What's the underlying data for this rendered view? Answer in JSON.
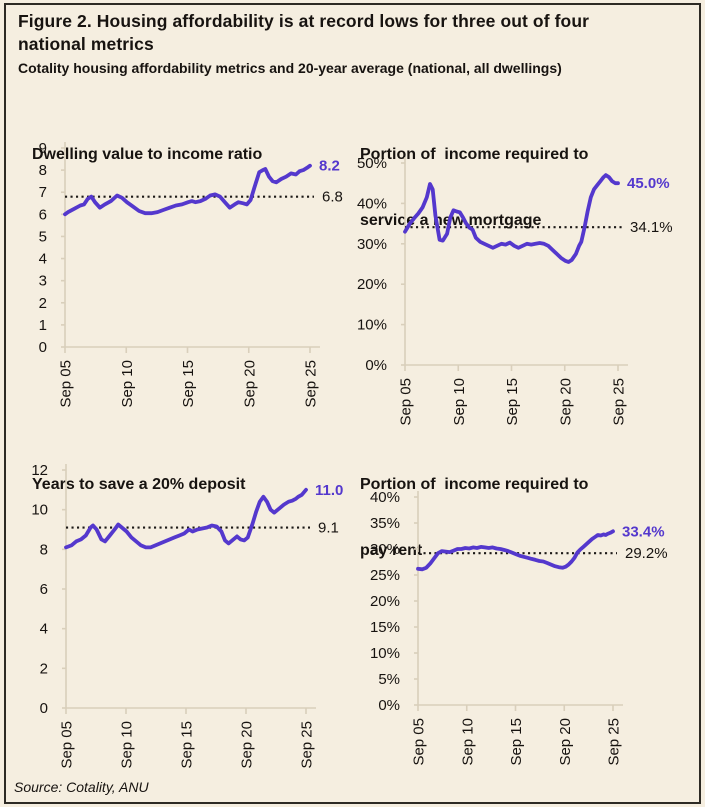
{
  "header": {
    "title": "Figure 2. Housing affordability is at record lows for three out of four national metrics",
    "subtitle": "Cotality housing affordability metrics and 20-year average (national, all dwellings)"
  },
  "footer": {
    "source": "Source: Cotality, ANU"
  },
  "colors": {
    "background": "#f5eee0",
    "border": "#2d2a24",
    "text": "#171310",
    "series_line": "#5438cd",
    "axis": "#d9cfbb",
    "average_dotted": "#1c1917"
  },
  "chart_data": [
    {
      "type": "line",
      "title_lines": [
        "Dwelling value to income ratio"
      ],
      "ylim": [
        0,
        9
      ],
      "y_tick_values": [
        9,
        8,
        7,
        6,
        5,
        4,
        3,
        2,
        1,
        0
      ],
      "y_tick_labels": [
        "9",
        "8",
        "7",
        "6",
        "5",
        "4",
        "3",
        "2",
        "1",
        "0"
      ],
      "x_range": [
        2005.75,
        2025.75
      ],
      "x_tick_values": [
        2005.75,
        2010.75,
        2015.75,
        2020.75,
        2025.75
      ],
      "x_tick_labels": [
        "Sep 05",
        "Sep 10",
        "Sep 15",
        "Sep 20",
        "Sep 25"
      ],
      "average": 6.8,
      "average_label": "6.8",
      "latest": 8.2,
      "latest_label": "8.2",
      "series": {
        "x": [
          2005.75,
          2006.0,
          2006.5,
          2007.0,
          2007.3,
          2007.6,
          2007.9,
          2008.2,
          2008.6,
          2009.0,
          2009.5,
          2010.0,
          2010.4,
          2010.8,
          2011.3,
          2011.8,
          2012.3,
          2012.8,
          2013.3,
          2013.8,
          2014.3,
          2014.8,
          2015.3,
          2015.8,
          2016.1,
          2016.4,
          2016.8,
          2017.2,
          2017.6,
          2018.0,
          2018.4,
          2018.8,
          2019.2,
          2019.6,
          2019.9,
          2020.3,
          2020.6,
          2020.9,
          2021.2,
          2021.6,
          2021.9,
          2022.1,
          2022.4,
          2022.7,
          2023.0,
          2023.4,
          2023.8,
          2024.2,
          2024.6,
          2024.9,
          2025.2,
          2025.5,
          2025.75
        ],
        "y": [
          6.0,
          6.1,
          6.25,
          6.4,
          6.45,
          6.7,
          6.8,
          6.55,
          6.3,
          6.45,
          6.6,
          6.85,
          6.75,
          6.55,
          6.35,
          6.15,
          6.05,
          6.05,
          6.1,
          6.2,
          6.3,
          6.4,
          6.45,
          6.55,
          6.6,
          6.55,
          6.6,
          6.7,
          6.85,
          6.9,
          6.8,
          6.55,
          6.3,
          6.45,
          6.55,
          6.5,
          6.45,
          6.65,
          7.2,
          7.9,
          8.0,
          8.05,
          7.7,
          7.5,
          7.45,
          7.6,
          7.7,
          7.85,
          7.8,
          7.95,
          8.0,
          8.1,
          8.2
        ]
      }
    },
    {
      "type": "line",
      "title_lines": [
        "Portion of  income required to",
        "service a new mortgage"
      ],
      "ylim": [
        0,
        50
      ],
      "y_tick_values": [
        50,
        40,
        30,
        20,
        10,
        0
      ],
      "y_tick_labels": [
        "50%",
        "40%",
        "30%",
        "20%",
        "10%",
        "0%"
      ],
      "x_range": [
        2005.75,
        2025.75
      ],
      "x_tick_values": [
        2005.75,
        2010.75,
        2015.75,
        2020.75,
        2025.75
      ],
      "x_tick_labels": [
        "Sep 05",
        "Sep 10",
        "Sep 15",
        "Sep 20",
        "Sep 25"
      ],
      "average": 34.1,
      "average_label": "34.1%",
      "latest": 45.0,
      "latest_label": "45.0%",
      "series": {
        "x": [
          2005.75,
          2006.2,
          2006.6,
          2007.0,
          2007.4,
          2007.8,
          2008.1,
          2008.35,
          2008.6,
          2009.0,
          2009.3,
          2009.7,
          2010.0,
          2010.3,
          2010.6,
          2010.9,
          2011.2,
          2011.5,
          2011.8,
          2012.1,
          2012.4,
          2012.8,
          2013.2,
          2013.6,
          2014.0,
          2014.4,
          2014.8,
          2015.2,
          2015.6,
          2016.0,
          2016.4,
          2016.8,
          2017.2,
          2017.6,
          2018.0,
          2018.4,
          2018.8,
          2019.2,
          2019.6,
          2020.0,
          2020.4,
          2020.8,
          2021.1,
          2021.4,
          2021.8,
          2022.1,
          2022.3,
          2022.6,
          2022.9,
          2023.2,
          2023.5,
          2023.8,
          2024.1,
          2024.4,
          2024.6,
          2024.9,
          2025.2,
          2025.5,
          2025.75
        ],
        "y": [
          33,
          35,
          36.3,
          37.5,
          39,
          41.5,
          44.8,
          43.5,
          37,
          31,
          30.8,
          32.5,
          36.5,
          38.3,
          38,
          37.8,
          36.5,
          35,
          34,
          33.5,
          31.5,
          30.5,
          30,
          29.5,
          29,
          29.5,
          30,
          29.8,
          30.3,
          29.5,
          29,
          29.5,
          30,
          29.8,
          30,
          30.2,
          30,
          29.5,
          28.5,
          27.5,
          26.5,
          25.8,
          25.5,
          26,
          27.5,
          29.5,
          30.5,
          34,
          38,
          41.5,
          43.5,
          44.5,
          45.5,
          46.5,
          47,
          46.5,
          45.5,
          45,
          45
        ]
      }
    },
    {
      "type": "line",
      "title_lines": [
        "Years to save a 20% deposit"
      ],
      "ylim": [
        0,
        12
      ],
      "y_tick_values": [
        12,
        10,
        8,
        6,
        4,
        2,
        0
      ],
      "y_tick_labels": [
        "12",
        "10",
        "8",
        "6",
        "4",
        "2",
        "0"
      ],
      "x_range": [
        2005.75,
        2025.75
      ],
      "x_tick_values": [
        2005.75,
        2010.75,
        2015.75,
        2020.75,
        2025.75
      ],
      "x_tick_labels": [
        "Sep 05",
        "Sep 10",
        "Sep 15",
        "Sep 20",
        "Sep 25"
      ],
      "average": 9.1,
      "average_label": "9.1",
      "latest": 11.0,
      "latest_label": "11.0",
      "series": {
        "x": [
          2005.75,
          2006.2,
          2006.6,
          2007.0,
          2007.4,
          2007.8,
          2008.0,
          2008.3,
          2008.7,
          2009.0,
          2009.4,
          2009.8,
          2010.1,
          2010.4,
          2010.8,
          2011.2,
          2011.6,
          2012.0,
          2012.4,
          2012.8,
          2013.2,
          2013.6,
          2014.0,
          2014.4,
          2014.8,
          2015.2,
          2015.6,
          2016.0,
          2016.3,
          2016.7,
          2017.1,
          2017.5,
          2017.9,
          2018.3,
          2018.7,
          2019.0,
          2019.3,
          2019.7,
          2020.0,
          2020.3,
          2020.6,
          2020.9,
          2021.3,
          2021.6,
          2021.9,
          2022.2,
          2022.5,
          2022.8,
          2023.1,
          2023.5,
          2023.9,
          2024.3,
          2024.6,
          2024.9,
          2025.1,
          2025.4,
          2025.75
        ],
        "y": [
          8.1,
          8.2,
          8.4,
          8.5,
          8.7,
          9.1,
          9.2,
          9.0,
          8.5,
          8.4,
          8.7,
          9.0,
          9.25,
          9.1,
          8.9,
          8.6,
          8.4,
          8.2,
          8.1,
          8.1,
          8.2,
          8.3,
          8.4,
          8.5,
          8.6,
          8.7,
          8.8,
          9.0,
          8.9,
          9.0,
          9.05,
          9.1,
          9.2,
          9.15,
          8.9,
          8.45,
          8.3,
          8.5,
          8.65,
          8.5,
          8.45,
          8.6,
          9.3,
          9.9,
          10.4,
          10.65,
          10.4,
          10.0,
          9.85,
          10.05,
          10.25,
          10.4,
          10.45,
          10.55,
          10.65,
          10.75,
          11.0
        ]
      }
    },
    {
      "type": "line",
      "title_lines": [
        "Portion of  income required to",
        "pay rent"
      ],
      "ylim": [
        0,
        40
      ],
      "y_tick_values": [
        40,
        35,
        30,
        25,
        20,
        15,
        10,
        5,
        0
      ],
      "y_tick_labels": [
        "40%",
        "35%",
        "30%",
        "25%",
        "20%",
        "15%",
        "10%",
        "5%",
        "0%"
      ],
      "x_range": [
        2005.75,
        2025.75
      ],
      "x_tick_values": [
        2005.75,
        2010.75,
        2015.75,
        2020.75,
        2025.75
      ],
      "x_tick_labels": [
        "Sep 05",
        "Sep 10",
        "Sep 15",
        "Sep 20",
        "Sep 25"
      ],
      "average": 29.2,
      "average_label": "29.2%",
      "latest": 33.4,
      "latest_label": "33.4%",
      "series": {
        "x": [
          2005.75,
          2006.2,
          2006.6,
          2007.0,
          2007.4,
          2007.8,
          2008.2,
          2008.6,
          2009.0,
          2009.4,
          2009.8,
          2010.2,
          2010.6,
          2011.0,
          2011.4,
          2011.8,
          2012.2,
          2012.6,
          2013.0,
          2013.4,
          2013.8,
          2014.2,
          2014.6,
          2015.0,
          2015.4,
          2015.8,
          2016.2,
          2016.6,
          2017.0,
          2017.4,
          2017.8,
          2018.2,
          2018.6,
          2019.0,
          2019.4,
          2019.8,
          2020.2,
          2020.6,
          2020.9,
          2021.2,
          2021.5,
          2021.8,
          2022.1,
          2022.4,
          2022.7,
          2023.0,
          2023.3,
          2023.6,
          2023.9,
          2024.2,
          2024.5,
          2024.8,
          2025.0,
          2025.2,
          2025.45,
          2025.75
        ],
        "y": [
          26.2,
          26.1,
          26.4,
          27.2,
          28.2,
          29.2,
          29.6,
          29.5,
          29.4,
          29.7,
          30.0,
          30.0,
          30.2,
          30.1,
          30.3,
          30.2,
          30.4,
          30.3,
          30.2,
          30.3,
          30.1,
          30.0,
          29.8,
          29.6,
          29.3,
          29.0,
          28.7,
          28.5,
          28.3,
          28.1,
          27.9,
          27.7,
          27.6,
          27.3,
          27.0,
          26.7,
          26.5,
          26.4,
          26.6,
          27.0,
          27.6,
          28.3,
          29.3,
          29.9,
          30.4,
          30.9,
          31.4,
          31.9,
          32.3,
          32.7,
          32.6,
          32.8,
          32.7,
          32.9,
          33.1,
          33.4
        ]
      }
    }
  ]
}
